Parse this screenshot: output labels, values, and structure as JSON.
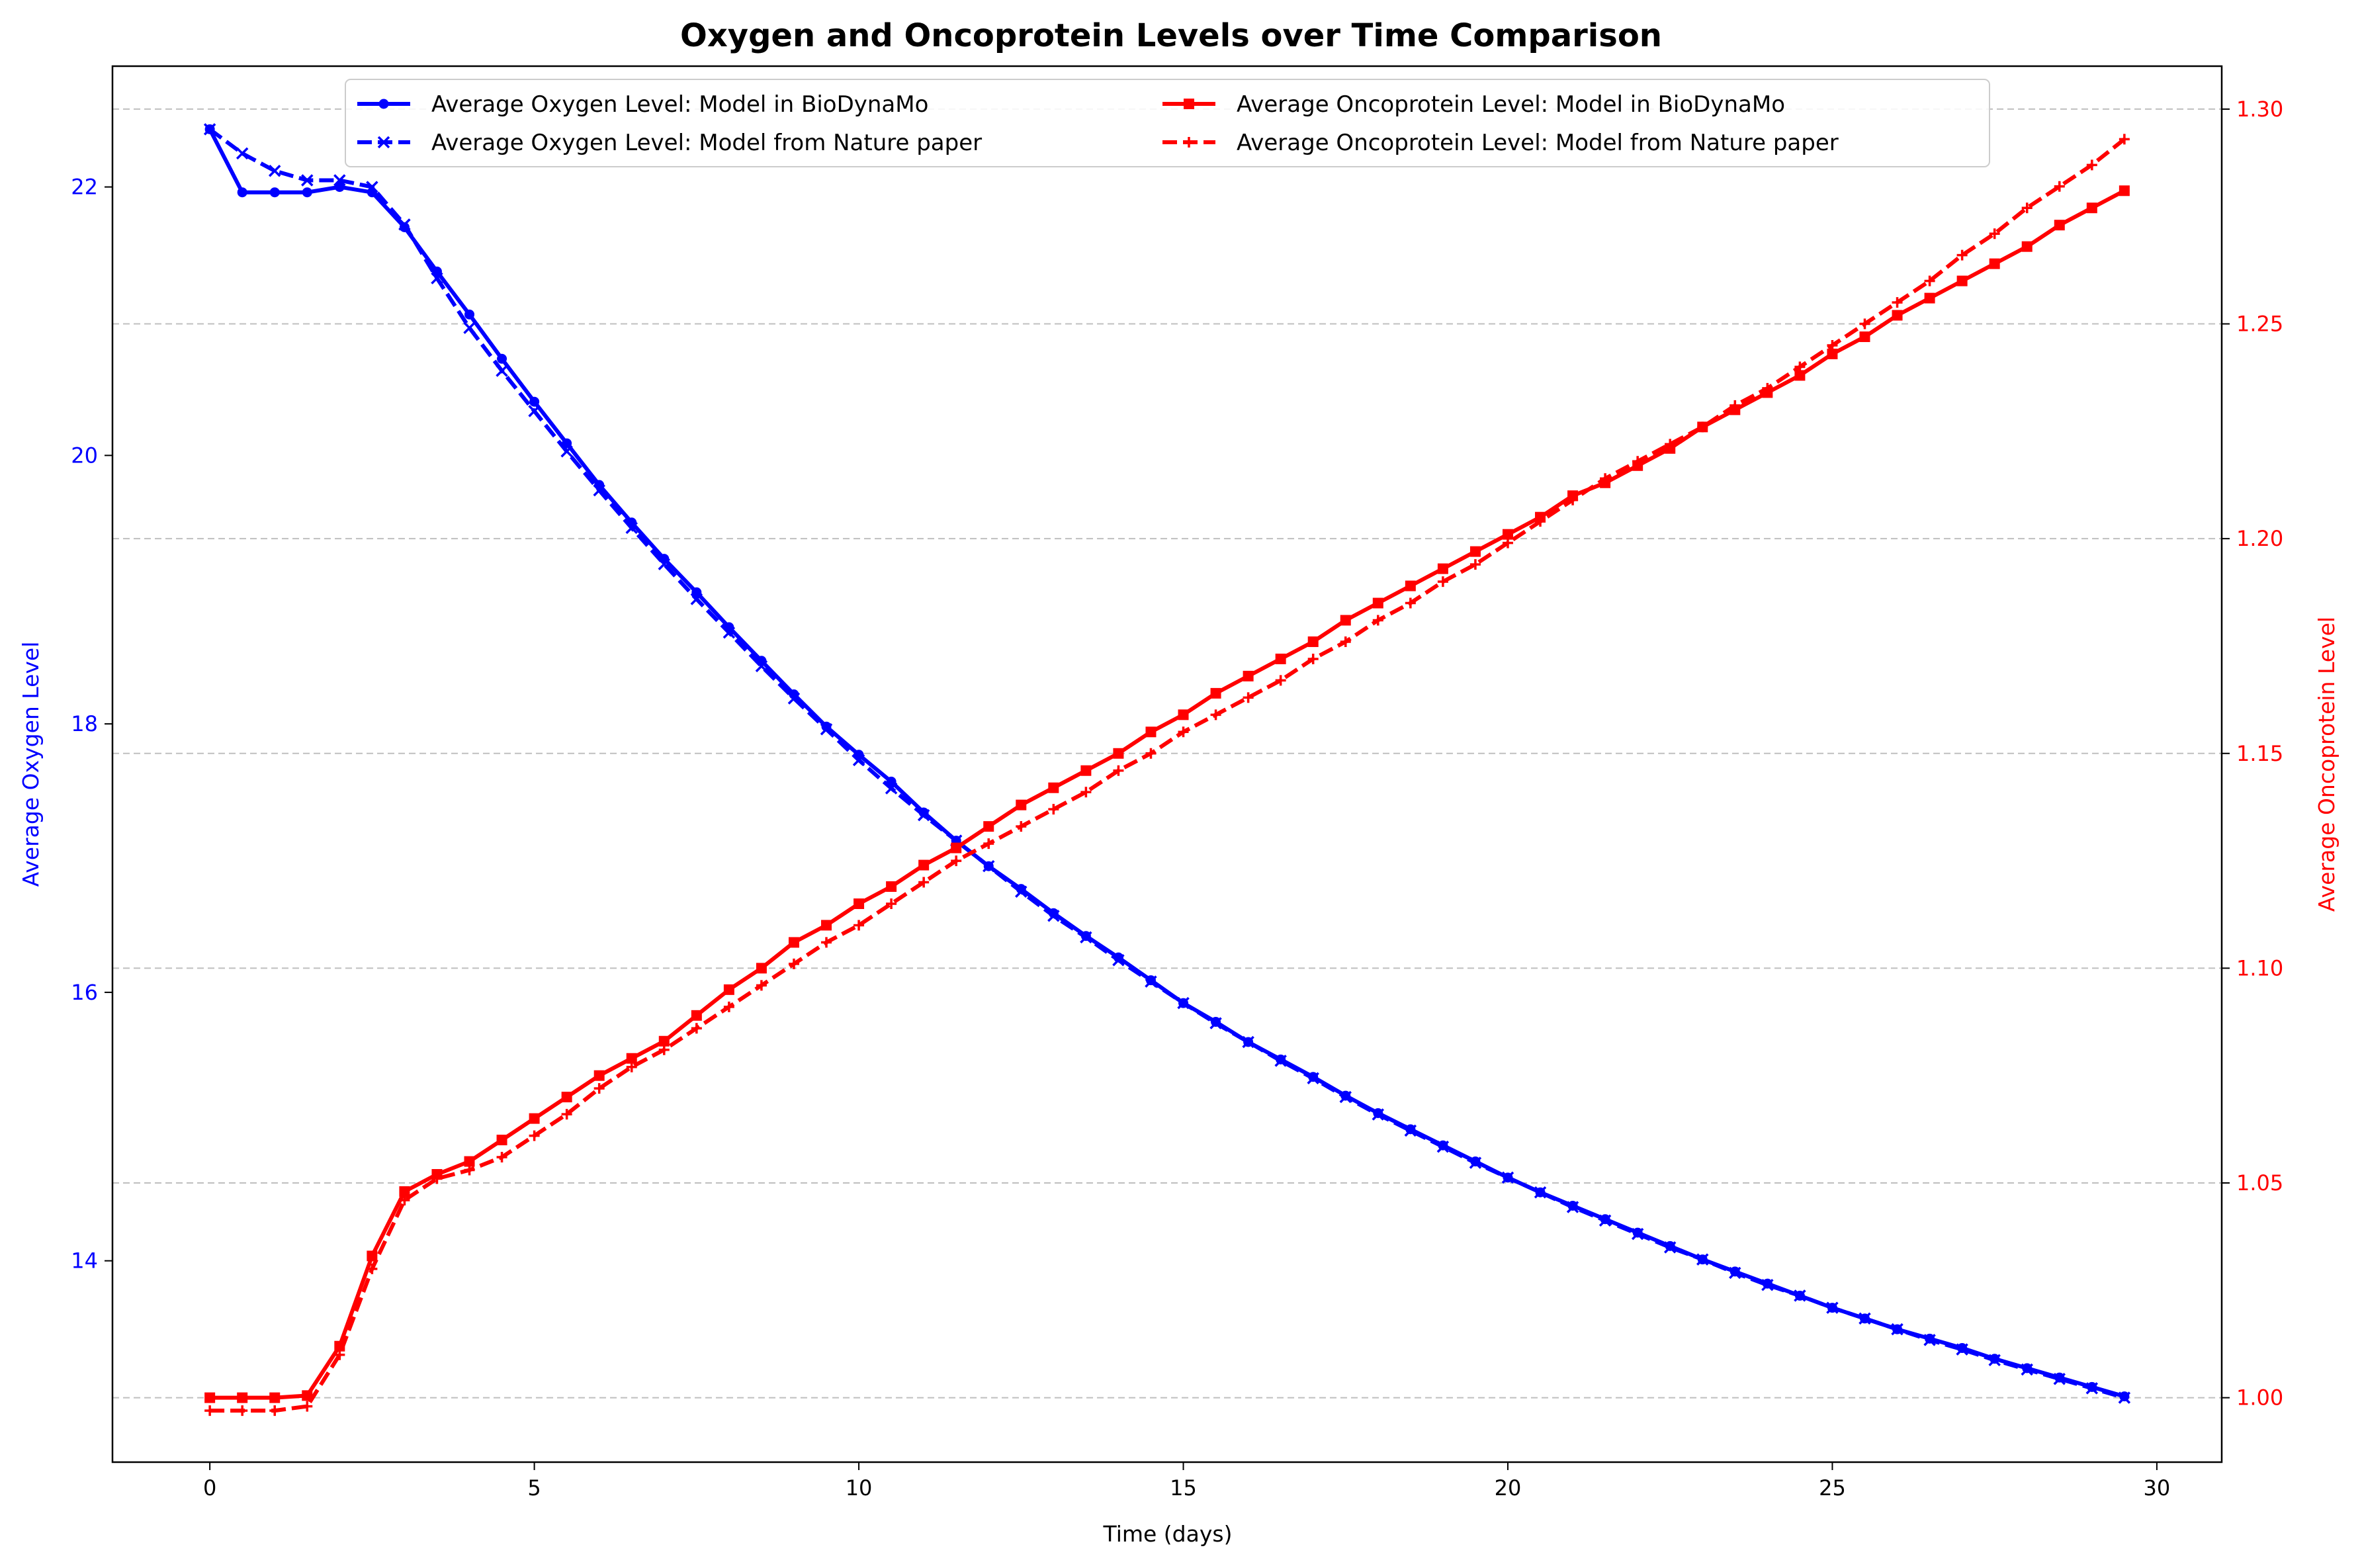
{
  "chart_data": {
    "type": "line",
    "title": "Oxygen and Oncoprotein Levels over Time Comparison",
    "xlabel": "Time (days)",
    "ylabel_left": "Average Oxygen Level",
    "ylabel_right": "Average Oncoprotein Level",
    "xlim": [
      -1.5,
      31
    ],
    "ylim_left": [
      12.5,
      22.9
    ],
    "ylim_right": [
      0.985,
      1.31
    ],
    "xticks": [
      0,
      5,
      10,
      15,
      20,
      25,
      30
    ],
    "xtick_labels": [
      "0",
      "5",
      "10",
      "15",
      "20",
      "25",
      "30"
    ],
    "yticks_left": [
      14,
      16,
      18,
      20,
      22
    ],
    "ytick_labels_left": [
      "14",
      "16",
      "18",
      "20",
      "22"
    ],
    "yticks_right": [
      1.0,
      1.05,
      1.1,
      1.15,
      1.2,
      1.25,
      1.3
    ],
    "ytick_labels_right": [
      "1.00",
      "1.05",
      "1.10",
      "1.15",
      "1.20",
      "1.25",
      "1.30"
    ],
    "grid": "horizontal dashed, right axis",
    "legend_position": "top-center",
    "x": [
      0,
      0.5,
      1,
      1.5,
      2,
      2.5,
      3,
      3.5,
      4,
      4.5,
      5,
      5.5,
      6,
      6.5,
      7,
      7.5,
      8,
      8.5,
      9,
      9.5,
      10,
      10.5,
      11,
      11.5,
      12,
      12.5,
      13,
      13.5,
      14,
      14.5,
      15,
      15.5,
      16,
      16.5,
      17,
      17.5,
      18,
      18.5,
      19,
      19.5,
      20,
      20.5,
      21,
      21.5,
      22,
      22.5,
      23,
      23.5,
      24,
      24.5,
      25,
      25.5,
      26,
      26.5,
      27,
      27.5,
      28,
      28.5,
      29,
      29.5
    ],
    "series": [
      {
        "name": "Average Oxygen Level: Model in BioDynaMo",
        "axis": "left",
        "color": "#0000ff",
        "linestyle": "solid",
        "marker": "circle",
        "values": [
          22.43,
          21.96,
          21.96,
          21.96,
          22.0,
          21.96,
          21.7,
          21.37,
          21.05,
          20.72,
          20.4,
          20.09,
          19.78,
          19.5,
          19.23,
          18.98,
          18.72,
          18.47,
          18.22,
          17.98,
          17.77,
          17.57,
          17.34,
          17.13,
          16.94,
          16.77,
          16.59,
          16.42,
          16.26,
          16.09,
          15.92,
          15.78,
          15.63,
          15.5,
          15.37,
          15.23,
          15.1,
          14.98,
          14.86,
          14.74,
          14.62,
          14.51,
          14.41,
          14.31,
          14.21,
          14.11,
          14.01,
          13.92,
          13.83,
          13.74,
          13.65,
          13.57,
          13.49,
          13.42,
          13.35,
          13.27,
          13.2,
          13.13,
          13.06,
          12.99
        ]
      },
      {
        "name": "Average Oxygen Level: Model from Nature paper",
        "axis": "left",
        "color": "#0000ff",
        "linestyle": "dashed",
        "marker": "x",
        "values": [
          22.43,
          22.25,
          22.12,
          22.05,
          22.05,
          22.0,
          21.72,
          21.32,
          20.95,
          20.63,
          20.33,
          20.03,
          19.74,
          19.46,
          19.19,
          18.93,
          18.68,
          18.43,
          18.19,
          17.96,
          17.73,
          17.52,
          17.32,
          17.13,
          16.94,
          16.75,
          16.57,
          16.41,
          16.24,
          16.08,
          15.92,
          15.77,
          15.63,
          15.49,
          15.36,
          15.22,
          15.09,
          14.97,
          14.85,
          14.73,
          14.62,
          14.51,
          14.4,
          14.3,
          14.2,
          14.1,
          14.01,
          13.91,
          13.82,
          13.74,
          13.65,
          13.57,
          13.49,
          13.41,
          13.34,
          13.26,
          13.19,
          13.12,
          13.05,
          12.98
        ]
      },
      {
        "name": "Average Oncoprotein Level: Model in BioDynaMo",
        "axis": "right",
        "color": "#ff0000",
        "linestyle": "solid",
        "marker": "square",
        "values": [
          1.0,
          1.0,
          1.0,
          1.0005,
          1.012,
          1.033,
          1.048,
          1.052,
          1.055,
          1.06,
          1.065,
          1.07,
          1.075,
          1.079,
          1.083,
          1.089,
          1.095,
          1.1,
          1.106,
          1.11,
          1.115,
          1.119,
          1.124,
          1.128,
          1.133,
          1.138,
          1.142,
          1.146,
          1.15,
          1.155,
          1.159,
          1.164,
          1.168,
          1.172,
          1.176,
          1.181,
          1.185,
          1.189,
          1.193,
          1.197,
          1.201,
          1.205,
          1.21,
          1.213,
          1.217,
          1.221,
          1.226,
          1.23,
          1.234,
          1.238,
          1.243,
          1.247,
          1.252,
          1.256,
          1.26,
          1.264,
          1.268,
          1.273,
          1.277,
          1.281
        ]
      },
      {
        "name": "Average Oncoprotein Level: Model from Nature paper",
        "axis": "right",
        "color": "#ff0000",
        "linestyle": "dashed",
        "marker": "plus",
        "values": [
          0.997,
          0.997,
          0.997,
          0.998,
          1.01,
          1.03,
          1.046,
          1.051,
          1.053,
          1.056,
          1.061,
          1.066,
          1.072,
          1.077,
          1.081,
          1.086,
          1.091,
          1.096,
          1.101,
          1.106,
          1.11,
          1.115,
          1.12,
          1.125,
          1.129,
          1.133,
          1.137,
          1.141,
          1.146,
          1.15,
          1.155,
          1.159,
          1.163,
          1.167,
          1.172,
          1.176,
          1.181,
          1.185,
          1.19,
          1.194,
          1.199,
          1.204,
          1.209,
          1.214,
          1.218,
          1.222,
          1.226,
          1.231,
          1.235,
          1.24,
          1.245,
          1.25,
          1.255,
          1.26,
          1.266,
          1.271,
          1.277,
          1.282,
          1.287,
          1.293
        ]
      }
    ]
  }
}
